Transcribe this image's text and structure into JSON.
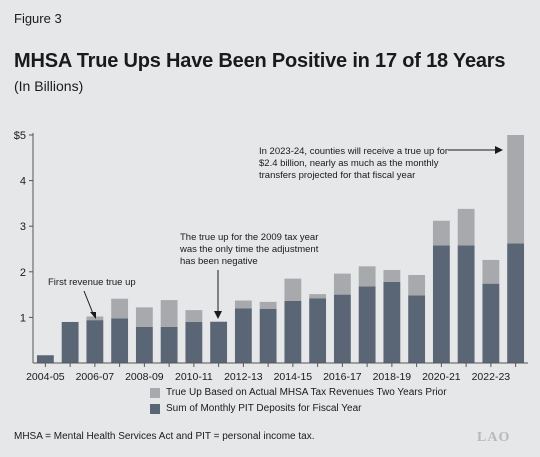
{
  "figure_label": "Figure 3",
  "title": "MHSA True Ups Have Been Positive in 17 of 18 Years",
  "subtitle": "(In Billions)",
  "footnote": "MHSA = Mental Health Services Act and PIT = personal income tax.",
  "logo": "LAO",
  "colors": {
    "background": "#e6e7e8",
    "true_up": "#a7a9ac",
    "monthly": "#5a6675",
    "axis": "#555555"
  },
  "legend": [
    {
      "label": "True Up Based on Actual MHSA Tax Revenues Two Years Prior",
      "color": "#a7a9ac"
    },
    {
      "label": "Sum of Monthly PIT Deposits for Fiscal Year",
      "color": "#5a6675"
    }
  ],
  "annotations": [
    {
      "lines": [
        "First revenue true up"
      ]
    },
    {
      "lines": [
        "The true up for the 2009 tax year",
        "was the only time the adjustment",
        "has been negative"
      ]
    },
    {
      "lines": [
        "In 2023-24, counties will receive a true up for",
        "$2.4 billion, nearly as much as the monthly",
        "transfers projected for that fiscal year"
      ]
    }
  ],
  "chart_data": {
    "type": "bar",
    "stacked": true,
    "categories": [
      "2004-05",
      "2005-06",
      "2006-07",
      "2007-08",
      "2008-09",
      "2009-10",
      "2010-11",
      "2011-12",
      "2012-13",
      "2013-14",
      "2014-15",
      "2015-16",
      "2016-17",
      "2017-18",
      "2018-19",
      "2019-20",
      "2020-21",
      "2021-22",
      "2022-23",
      "2023-24"
    ],
    "tick_labels": [
      "2004-05",
      "",
      "2006-07",
      "",
      "2008-09",
      "",
      "2010-11",
      "",
      "2012-13",
      "",
      "2014-15",
      "",
      "2016-17",
      "",
      "2018-19",
      "",
      "2020-21",
      "",
      "2022-23",
      ""
    ],
    "series": [
      {
        "name": "Sum of Monthly PIT Deposits for Fiscal Year",
        "values": [
          0.17,
          0.9,
          0.94,
          0.98,
          0.79,
          0.79,
          0.9,
          0.92,
          1.2,
          1.19,
          1.36,
          1.42,
          1.5,
          1.68,
          1.78,
          1.48,
          2.58,
          2.58,
          1.74,
          2.62
        ]
      },
      {
        "name": "True Up Based on Actual MHSA Tax Revenues Two Years Prior",
        "values": [
          0,
          0,
          0.08,
          0.43,
          0.43,
          0.59,
          0.26,
          -0.02,
          0.17,
          0.15,
          0.49,
          0.09,
          0.46,
          0.44,
          0.26,
          0.45,
          0.54,
          0.8,
          0.52,
          2.38
        ]
      }
    ],
    "ylim": [
      0,
      5
    ],
    "yticks": [
      1,
      2,
      3,
      4,
      5
    ],
    "ytick_labels": [
      "1",
      "2",
      "3",
      "4",
      "$5"
    ],
    "grid": false
  }
}
